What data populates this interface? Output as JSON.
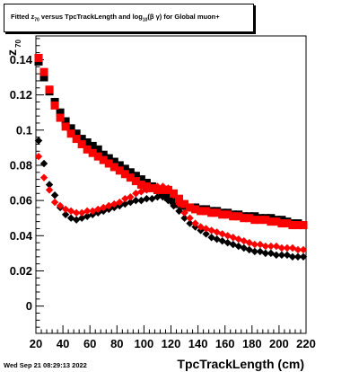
{
  "chart_data": {
    "type": "scatter",
    "title_parts": {
      "pre": "Fitted  z",
      "sub1": "70",
      "mid": "  versus TpcTrackLength and log",
      "sub2": "10",
      "post": "(β  γ) for Global muon+"
    },
    "xlabel": "TpcTrackLength (cm)",
    "ylabel": "z",
    "ylabel_sub": "70",
    "xlim": [
      20,
      220
    ],
    "ylim": [
      -0.0155,
      0.1535
    ],
    "x_ticks": [
      "20",
      "40",
      "60",
      "80",
      "100",
      "120",
      "140",
      "160",
      "180",
      "200",
      "220"
    ],
    "y_ticks": [
      "0",
      "0.02",
      "0.04",
      "0.06",
      "0.08",
      "0.1",
      "0.12",
      "0.14"
    ],
    "series": [
      {
        "color": "#000000",
        "marker": "square",
        "x": [
          22,
          26,
          30,
          34,
          38,
          42,
          46,
          50,
          54,
          58,
          62,
          66,
          70,
          74,
          78,
          82,
          86,
          90,
          94,
          98,
          102,
          106,
          110,
          114,
          118,
          122,
          126,
          130,
          134,
          138,
          142,
          146,
          150,
          154,
          158,
          162,
          166,
          170,
          174,
          178,
          182,
          186,
          190,
          194,
          198,
          202,
          206,
          210,
          214,
          218
        ],
        "y": [
          0.139,
          0.13,
          0.122,
          0.116,
          0.11,
          0.105,
          0.101,
          0.098,
          0.095,
          0.093,
          0.091,
          0.089,
          0.086,
          0.084,
          0.082,
          0.08,
          0.078,
          0.076,
          0.074,
          0.072,
          0.07,
          0.068,
          0.066,
          0.064,
          0.062,
          0.06,
          0.058,
          0.057,
          0.056,
          0.056,
          0.055,
          0.055,
          0.054,
          0.054,
          0.053,
          0.053,
          0.052,
          0.052,
          0.051,
          0.051,
          0.051,
          0.05,
          0.05,
          0.05,
          0.049,
          0.049,
          0.048,
          0.047,
          0.047,
          0.046
        ]
      },
      {
        "color": "#000000",
        "marker": "diamond",
        "x": [
          22,
          26,
          30,
          34,
          38,
          42,
          46,
          50,
          54,
          58,
          62,
          66,
          70,
          74,
          78,
          82,
          86,
          90,
          94,
          98,
          102,
          106,
          110,
          114,
          118,
          122,
          126,
          130,
          134,
          138,
          142,
          146,
          150,
          154,
          158,
          162,
          166,
          170,
          174,
          178,
          182,
          186,
          190,
          194,
          198,
          202,
          206,
          210,
          214,
          218
        ],
        "y": [
          0.094,
          0.081,
          0.069,
          0.063,
          0.056,
          0.052,
          0.05,
          0.049,
          0.05,
          0.051,
          0.052,
          0.053,
          0.054,
          0.055,
          0.056,
          0.057,
          0.058,
          0.059,
          0.06,
          0.06,
          0.061,
          0.061,
          0.062,
          0.062,
          0.06,
          0.057,
          0.054,
          0.05,
          0.047,
          0.045,
          0.043,
          0.041,
          0.039,
          0.038,
          0.037,
          0.036,
          0.035,
          0.034,
          0.033,
          0.032,
          0.031,
          0.031,
          0.03,
          0.03,
          0.029,
          0.029,
          0.029,
          0.028,
          0.028,
          0.028
        ]
      },
      {
        "color": "#ff0000",
        "marker": "square",
        "x": [
          22,
          26,
          30,
          34,
          38,
          42,
          46,
          50,
          54,
          58,
          62,
          66,
          70,
          74,
          78,
          82,
          86,
          90,
          94,
          98,
          102,
          106,
          110,
          114,
          118,
          122,
          126,
          130,
          134,
          138,
          142,
          146,
          150,
          154,
          158,
          162,
          166,
          170,
          174,
          178,
          182,
          186,
          190,
          194,
          198,
          202,
          206,
          210,
          214,
          218
        ],
        "y": [
          0.141,
          0.133,
          0.123,
          0.114,
          0.107,
          0.102,
          0.098,
          0.095,
          0.092,
          0.089,
          0.087,
          0.085,
          0.083,
          0.081,
          0.079,
          0.077,
          0.075,
          0.073,
          0.071,
          0.069,
          0.068,
          0.067,
          0.066,
          0.066,
          0.066,
          0.064,
          0.061,
          0.058,
          0.056,
          0.055,
          0.054,
          0.054,
          0.053,
          0.053,
          0.052,
          0.052,
          0.051,
          0.051,
          0.05,
          0.05,
          0.049,
          0.049,
          0.049,
          0.048,
          0.048,
          0.047,
          0.047,
          0.046,
          0.046,
          0.046
        ]
      },
      {
        "color": "#ff0000",
        "marker": "diamond",
        "x": [
          22,
          26,
          30,
          34,
          38,
          42,
          46,
          50,
          54,
          58,
          62,
          66,
          70,
          74,
          78,
          82,
          86,
          90,
          94,
          98,
          102,
          106,
          110,
          114,
          118,
          122,
          126,
          130,
          134,
          138,
          142,
          146,
          150,
          154,
          158,
          162,
          166,
          170,
          174,
          178,
          182,
          186,
          190,
          194,
          198,
          202,
          206,
          210,
          214,
          218
        ],
        "y": [
          0.085,
          0.073,
          0.066,
          0.059,
          0.057,
          0.055,
          0.054,
          0.053,
          0.053,
          0.054,
          0.054,
          0.055,
          0.056,
          0.057,
          0.058,
          0.059,
          0.061,
          0.062,
          0.064,
          0.065,
          0.066,
          0.067,
          0.068,
          0.068,
          0.067,
          0.063,
          0.058,
          0.053,
          0.05,
          0.047,
          0.045,
          0.044,
          0.043,
          0.042,
          0.041,
          0.04,
          0.039,
          0.038,
          0.037,
          0.036,
          0.035,
          0.035,
          0.034,
          0.034,
          0.034,
          0.033,
          0.033,
          0.033,
          0.032,
          0.032
        ]
      }
    ],
    "grid": false,
    "legend": "none"
  },
  "footer": {
    "timestamp": "Wed Sep 21 08:29:13 2022"
  }
}
